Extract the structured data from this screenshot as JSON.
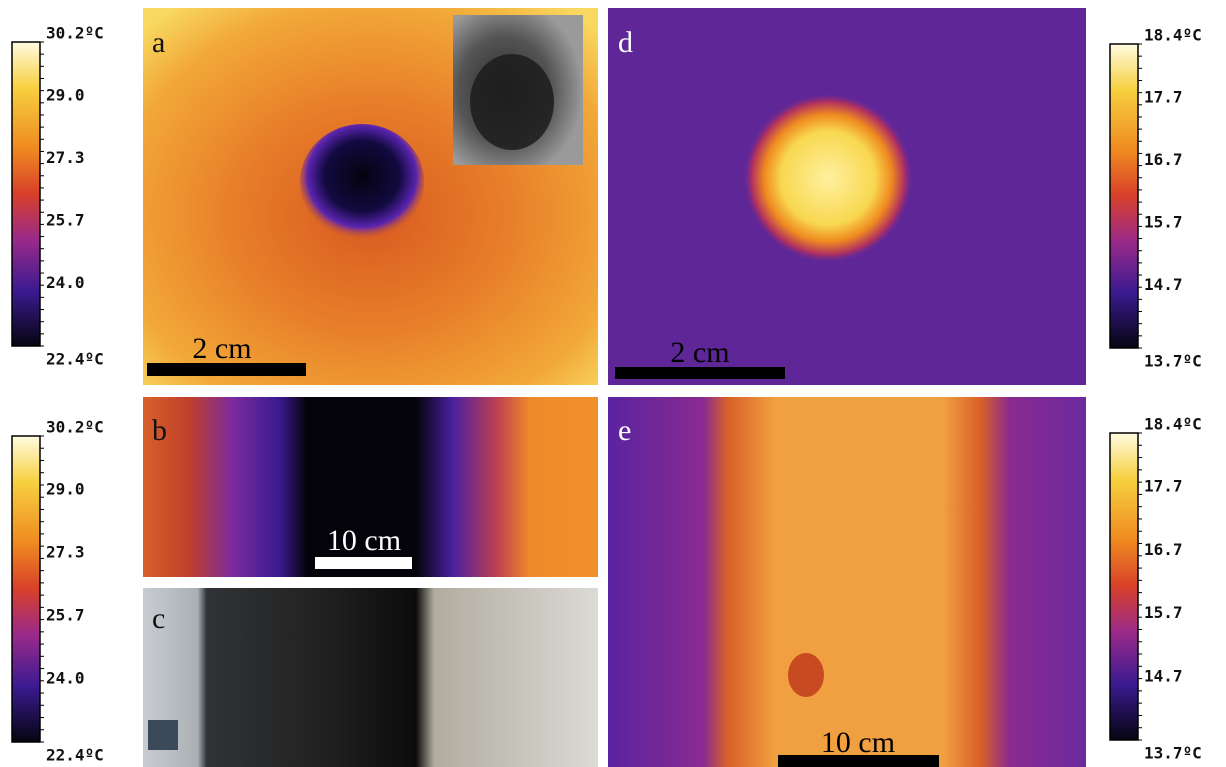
{
  "panels": [
    {
      "label": "a",
      "scale": "2 cm"
    },
    {
      "label": "b",
      "scale": "10 cm"
    },
    {
      "label": "c"
    },
    {
      "label": "d",
      "scale": "2 cm"
    },
    {
      "label": "e",
      "scale": "10 cm"
    }
  ],
  "colorbars": [
    {
      "ticks": [
        "30.2ºC",
        "29.0",
        "27.3",
        "25.7",
        "24.0",
        "22.4ºC"
      ]
    },
    {
      "ticks": [
        "30.2ºC",
        "29.0",
        "27.3",
        "25.7",
        "24.0",
        "22.4ºC"
      ]
    },
    {
      "ticks": [
        "18.4ºC",
        "17.7",
        "16.7",
        "15.7",
        "14.7",
        "13.7ºC"
      ]
    },
    {
      "ticks": [
        "18.4ºC",
        "17.7",
        "16.7",
        "15.7",
        "14.7",
        "13.7ºC"
      ]
    }
  ]
}
